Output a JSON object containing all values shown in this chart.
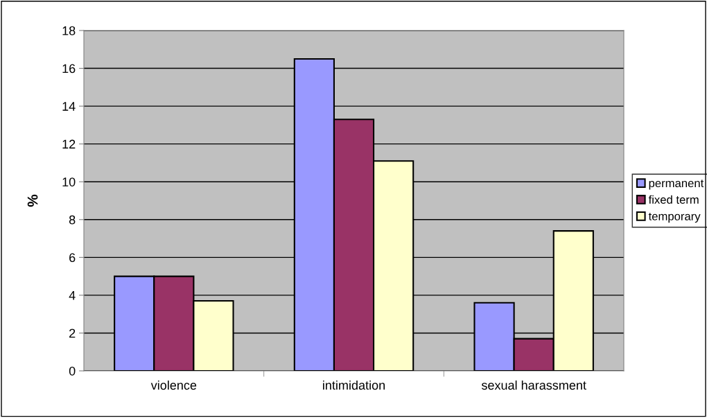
{
  "chart_data": {
    "type": "bar",
    "ylabel": "%",
    "categories": [
      "violence",
      "intimidation",
      "sexual harassment"
    ],
    "series": [
      {
        "name": "permanent",
        "color": "#9999ff",
        "values": [
          5.0,
          16.5,
          3.6
        ]
      },
      {
        "name": "fixed term",
        "color": "#993366",
        "values": [
          5.0,
          13.3,
          1.7
        ]
      },
      {
        "name": "temporary",
        "color": "#ffffcc",
        "values": [
          3.7,
          11.1,
          7.4
        ]
      }
    ],
    "ylim": [
      0,
      18
    ],
    "yticks": [
      0,
      2,
      4,
      6,
      8,
      10,
      12,
      14,
      16,
      18
    ],
    "grid": "y",
    "legend": "right"
  }
}
